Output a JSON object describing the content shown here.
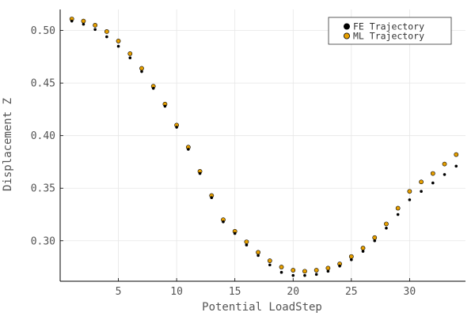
{
  "chart_data": {
    "type": "scatter",
    "xlabel": "Potential LoadStep",
    "ylabel": "Displacement Z",
    "xlim": [
      0,
      34.8
    ],
    "ylim": [
      0.2615,
      0.52
    ],
    "xticks": [
      5,
      10,
      15,
      20,
      25,
      30
    ],
    "yticks": [
      0.3,
      0.35,
      0.4,
      0.45,
      0.5
    ],
    "xtick_labels": [
      "5",
      "10",
      "15",
      "20",
      "25",
      "30"
    ],
    "ytick_labels": [
      "0.30",
      "0.35",
      "0.40",
      "0.45",
      "0.50"
    ],
    "grid": true,
    "legend_position": "top-right",
    "x": [
      1,
      2,
      3,
      4,
      5,
      6,
      7,
      8,
      9,
      10,
      11,
      12,
      13,
      14,
      15,
      16,
      17,
      18,
      19,
      20,
      21,
      22,
      23,
      24,
      25,
      26,
      27,
      28,
      29,
      30,
      31,
      32,
      33,
      34
    ],
    "series": [
      {
        "name": "FE Trajectory",
        "color": "#000000",
        "values": [
          0.509,
          0.506,
          0.501,
          0.494,
          0.485,
          0.474,
          0.461,
          0.445,
          0.428,
          0.408,
          0.387,
          0.364,
          0.341,
          0.318,
          0.307,
          0.296,
          0.286,
          0.277,
          0.27,
          0.267,
          0.267,
          0.268,
          0.271,
          0.276,
          0.282,
          0.29,
          0.3,
          0.312,
          0.325,
          0.339,
          0.347,
          0.355,
          0.363,
          0.371
        ]
      },
      {
        "name": "ML Trajectory",
        "color": "#E69F00",
        "values": [
          0.511,
          0.509,
          0.505,
          0.499,
          0.49,
          0.478,
          0.464,
          0.447,
          0.43,
          0.41,
          0.389,
          0.366,
          0.343,
          0.32,
          0.309,
          0.299,
          0.289,
          0.281,
          0.275,
          0.272,
          0.271,
          0.272,
          0.274,
          0.278,
          0.285,
          0.293,
          0.303,
          0.316,
          0.331,
          0.347,
          0.356,
          0.364,
          0.373,
          0.382
        ]
      }
    ]
  }
}
